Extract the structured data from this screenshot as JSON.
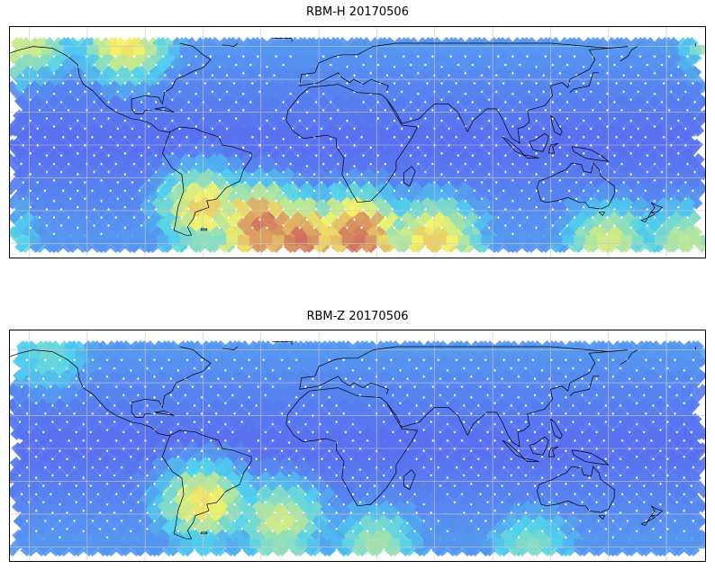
{
  "panels": [
    {
      "title": "RBM-H 20170506",
      "hotspots": [
        {
          "lon": 20,
          "lat": -55,
          "level": 0.95
        },
        {
          "lon": 60,
          "lat": -58,
          "level": 0.75
        },
        {
          "lon": -100,
          "lat": 60,
          "level": 0.7
        },
        {
          "lon": -150,
          "lat": 62,
          "level": 0.6
        },
        {
          "lon": -60,
          "lat": -40,
          "level": 0.75
        },
        {
          "lon": -30,
          "lat": -50,
          "level": 0.95
        },
        {
          "lon": -10,
          "lat": -58,
          "level": 0.95
        },
        {
          "lon": 150,
          "lat": -60,
          "level": 0.6
        },
        {
          "lon": -170,
          "lat": -60,
          "level": 0.55
        }
      ]
    },
    {
      "title": "RBM-Z 20170506",
      "hotspots": [
        {
          "lon": -60,
          "lat": -35,
          "level": 0.72
        },
        {
          "lon": -20,
          "lat": -45,
          "level": 0.6
        },
        {
          "lon": 30,
          "lat": -60,
          "level": 0.5
        },
        {
          "lon": 110,
          "lat": -62,
          "level": 0.45
        },
        {
          "lon": -140,
          "lat": 55,
          "level": 0.4
        }
      ]
    }
  ],
  "colors": {
    "swath_low": "#5a5cf0",
    "swath_mid": "#4fd2ef",
    "swath_warm": "#f4f36b",
    "swath_high": "#c85a5a",
    "coast": "#000000",
    "grid": "#c8c8c8"
  }
}
